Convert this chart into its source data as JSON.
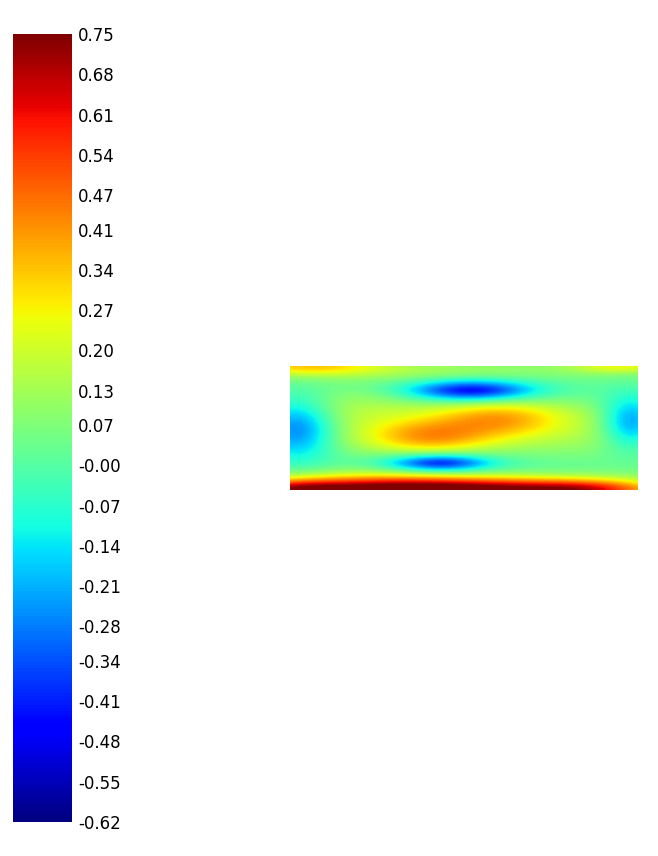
{
  "vmin": -0.62,
  "vmax": 0.75,
  "colorbar_ticks": [
    0.75,
    0.68,
    0.61,
    0.54,
    0.47,
    0.41,
    0.34,
    0.27,
    0.2,
    0.13,
    0.07,
    -0.0,
    -0.07,
    -0.14,
    -0.21,
    -0.28,
    -0.34,
    -0.41,
    -0.48,
    -0.55,
    -0.62
  ],
  "colorbar_tick_labels": [
    "0.75",
    "0.68",
    "0.61",
    "0.54",
    "0.47",
    "0.41",
    "0.34",
    "0.27",
    "0.20",
    "0.13",
    "0.07",
    "-0.00",
    "-0.07",
    "-0.14",
    "-0.21",
    "-0.28",
    "-0.34",
    "-0.41",
    "-0.48",
    "-0.55",
    "-0.62"
  ],
  "figsize": [
    6.58,
    8.56
  ],
  "dpi": 100,
  "background_color": "#ffffff"
}
